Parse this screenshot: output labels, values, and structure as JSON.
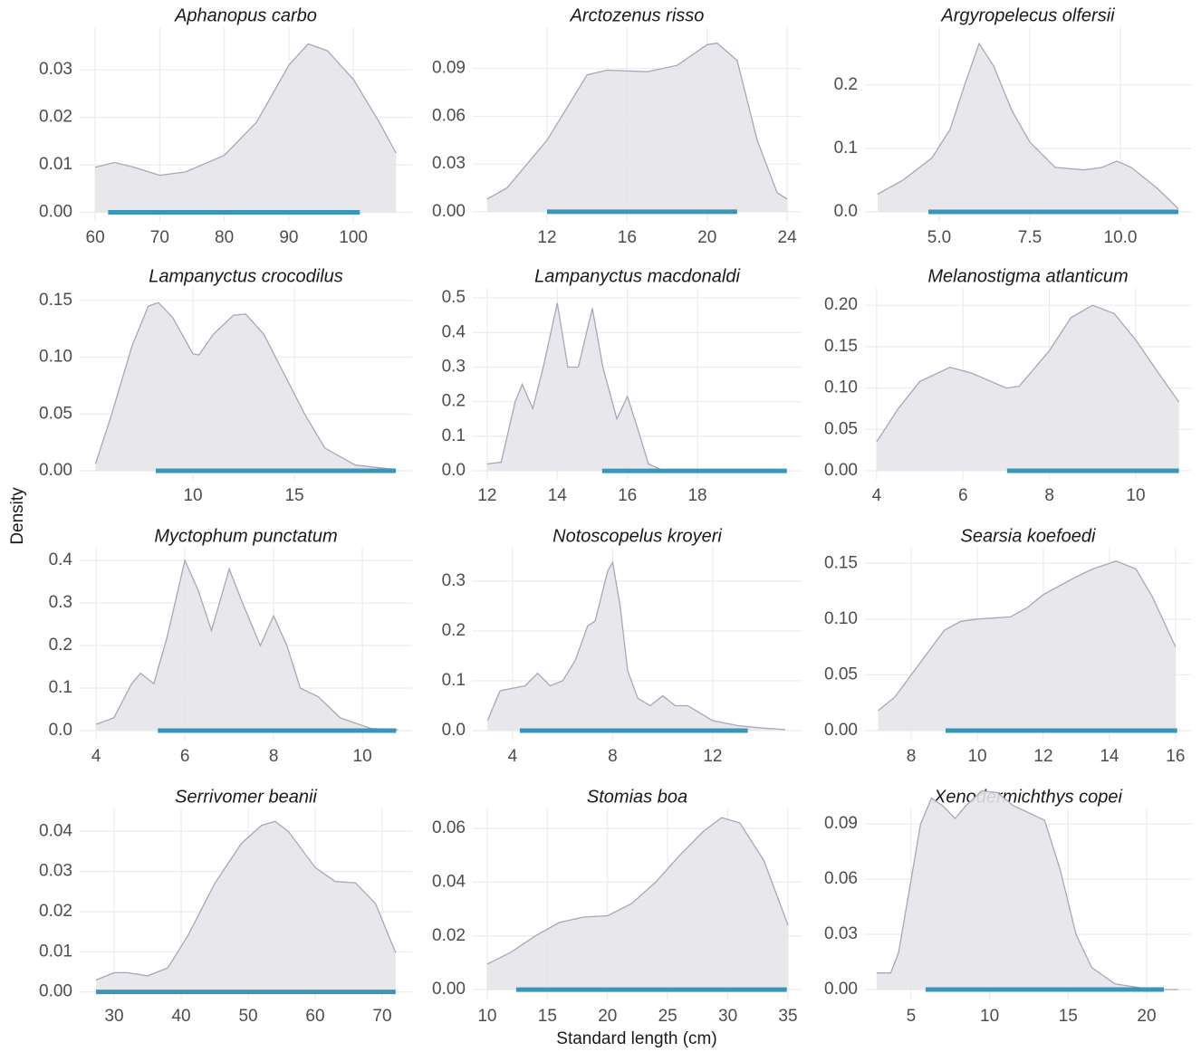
{
  "ylabel": "Density",
  "xlabel": "Standard length (cm)",
  "chart_data": [
    {
      "type": "area",
      "title": "Aphanopus carbo",
      "color": "#e6e4ea",
      "line_color": "#a9a6ba",
      "range_color": "#3a96b8",
      "grid": true,
      "x": [
        60,
        63,
        66,
        70,
        74,
        80,
        85,
        90,
        93,
        96,
        100,
        104,
        106.6
      ],
      "values": [
        0.0095,
        0.0105,
        0.0095,
        0.0078,
        0.0085,
        0.012,
        0.019,
        0.031,
        0.0355,
        0.034,
        0.028,
        0.019,
        0.0125
      ],
      "range": [
        62,
        101
      ],
      "xlim": [
        57.6,
        109.1
      ],
      "ylim": [
        -0.002,
        0.039
      ],
      "xticks": [
        60,
        70,
        80,
        90,
        100
      ],
      "yticks": [
        {
          "value": 0,
          "label": "0.00"
        },
        0.01,
        0.02,
        0.03
      ]
    },
    {
      "type": "area",
      "title": "Arctozenus risso",
      "color": "#e6e4ea",
      "line_color": "#a9a6ba",
      "range_color": "#3a96b8",
      "grid": true,
      "x": [
        9,
        10,
        12,
        14,
        15,
        17,
        18.5,
        20,
        20.5,
        21.5,
        22.5,
        23.5,
        24
      ],
      "values": [
        0.008,
        0.015,
        0.045,
        0.086,
        0.089,
        0.088,
        0.092,
        0.105,
        0.106,
        0.095,
        0.045,
        0.012,
        0.008
      ],
      "range": [
        12,
        21.5
      ],
      "xlim": [
        8.29,
        24.72
      ],
      "ylim": [
        -0.0063,
        0.116
      ],
      "xticks": [
        12,
        16,
        20,
        24
      ],
      "yticks": [
        {
          "value": 0,
          "label": "0.00"
        },
        0.03,
        0.06,
        0.09
      ]
    },
    {
      "type": "area",
      "title": "Argyropelecus olfersii",
      "color": "#e6e4ea",
      "line_color": "#a9a6ba",
      "range_color": "#3a96b8",
      "grid": true,
      "x": [
        3.3,
        4,
        4.8,
        5.3,
        5.7,
        6.1,
        6.5,
        7,
        7.5,
        8.2,
        9,
        9.5,
        9.9,
        10.3,
        11,
        11.6
      ],
      "values": [
        0.028,
        0.05,
        0.085,
        0.13,
        0.2,
        0.265,
        0.23,
        0.16,
        0.11,
        0.07,
        0.066,
        0.07,
        0.08,
        0.07,
        0.038,
        0.005
      ],
      "range": [
        4.7,
        11.6
      ],
      "xlim": [
        2.95,
        11.95
      ],
      "ylim": [
        -0.0157,
        0.291
      ],
      "xticks": [
        {
          "value": 5,
          "label": "5.0"
        },
        7.5,
        {
          "value": 10,
          "label": "10.0"
        }
      ],
      "yticks": [
        {
          "value": 0,
          "label": "0.0"
        },
        0.1,
        0.2
      ]
    },
    {
      "type": "area",
      "title": "Lampanyctus crocodilus",
      "color": "#e6e4ea",
      "line_color": "#a9a6ba",
      "range_color": "#3a96b8",
      "grid": true,
      "x": [
        5.2,
        6,
        7,
        7.8,
        8.3,
        9,
        10,
        10.3,
        11,
        12,
        12.6,
        13.5,
        14.5,
        15.5,
        16.5,
        18,
        20
      ],
      "values": [
        0.006,
        0.05,
        0.11,
        0.145,
        0.148,
        0.135,
        0.103,
        0.102,
        0.12,
        0.137,
        0.138,
        0.12,
        0.085,
        0.05,
        0.02,
        0.005,
        0.001
      ],
      "range": [
        8.17,
        20
      ],
      "xlim": [
        4.42,
        20.8
      ],
      "ylim": [
        -0.008,
        0.161
      ],
      "xticks": [
        10,
        15
      ],
      "yticks": [
        {
          "value": 0,
          "label": "0.00"
        },
        0.05,
        {
          "value": 0.1,
          "label": "0.10"
        },
        0.15
      ]
    },
    {
      "type": "area",
      "title": "Lampanyctus macdonaldi",
      "color": "#e6e4ea",
      "line_color": "#a9a6ba",
      "range_color": "#3a96b8",
      "grid": true,
      "x": [
        12,
        12.4,
        12.8,
        13,
        13.3,
        13.6,
        14,
        14.3,
        14.6,
        15,
        15.3,
        15.7,
        16,
        16.3,
        16.6,
        17,
        18
      ],
      "values": [
        0.02,
        0.025,
        0.2,
        0.25,
        0.18,
        0.3,
        0.485,
        0.3,
        0.3,
        0.47,
        0.3,
        0.15,
        0.215,
        0.12,
        0.02,
        0.002,
        0
      ],
      "range": [
        15.28,
        20.55
      ],
      "xlim": [
        11.59,
        20.97
      ],
      "ylim": [
        -0.026,
        0.529
      ],
      "xticks": [
        12,
        14,
        16,
        18
      ],
      "yticks": [
        {
          "value": 0,
          "label": "0.0"
        },
        0.1,
        0.2,
        0.3,
        0.4,
        0.5
      ]
    },
    {
      "type": "area",
      "title": "Melanostigma atlanticum",
      "color": "#e6e4ea",
      "line_color": "#a9a6ba",
      "range_color": "#3a96b8",
      "grid": true,
      "x": [
        4,
        4.5,
        5,
        5.7,
        6.2,
        7,
        7.3,
        8,
        8.5,
        9,
        9.5,
        10,
        10.5,
        11
      ],
      "values": [
        0.035,
        0.075,
        0.108,
        0.125,
        0.118,
        0.1,
        0.102,
        0.145,
        0.185,
        0.2,
        0.19,
        0.158,
        0.12,
        0.083
      ],
      "range": [
        7.02,
        11
      ],
      "xlim": [
        3.73,
        11.28
      ],
      "ylim": [
        -0.011,
        0.221
      ],
      "xticks": [
        4,
        6,
        8,
        10
      ],
      "yticks": [
        {
          "value": 0,
          "label": "0.00"
        },
        0.05,
        {
          "value": 0.1,
          "label": "0.10"
        },
        0.15,
        {
          "value": 0.2,
          "label": "0.20"
        }
      ]
    },
    {
      "type": "area",
      "title": "Myctophum punctatum",
      "color": "#e6e4ea",
      "line_color": "#a9a6ba",
      "range_color": "#3a96b8",
      "grid": true,
      "x": [
        4,
        4.4,
        4.8,
        5,
        5.3,
        5.6,
        6,
        6.3,
        6.6,
        7,
        7.3,
        7.7,
        8,
        8.3,
        8.6,
        9,
        9.5,
        10.2,
        10.8
      ],
      "values": [
        0.015,
        0.03,
        0.11,
        0.135,
        0.11,
        0.22,
        0.4,
        0.33,
        0.235,
        0.38,
        0.3,
        0.2,
        0.27,
        0.2,
        0.1,
        0.08,
        0.03,
        0.005,
        0.002
      ],
      "range": [
        5.39,
        10.76
      ],
      "xlim": [
        3.63,
        11.12
      ],
      "ylim": [
        -0.0234,
        0.43
      ],
      "xticks": [
        4,
        6,
        8,
        10
      ],
      "yticks": [
        {
          "value": 0,
          "label": "0.0"
        },
        0.1,
        0.2,
        0.3,
        0.4
      ]
    },
    {
      "type": "area",
      "title": "Notoscopelus kroyeri",
      "color": "#e6e4ea",
      "line_color": "#a9a6ba",
      "range_color": "#3a96b8",
      "grid": true,
      "x": [
        3,
        3.5,
        4,
        4.5,
        5,
        5.5,
        6,
        6.5,
        7,
        7.3,
        7.8,
        8,
        8.3,
        8.6,
        9,
        9.5,
        10,
        10.5,
        11,
        11.5,
        12,
        13,
        14,
        14.9
      ],
      "values": [
        0.02,
        0.08,
        0.085,
        0.09,
        0.115,
        0.09,
        0.1,
        0.14,
        0.21,
        0.22,
        0.32,
        0.338,
        0.25,
        0.12,
        0.065,
        0.05,
        0.07,
        0.05,
        0.05,
        0.035,
        0.02,
        0.01,
        0.005,
        0.002
      ],
      "range": [
        4.29,
        13.4
      ],
      "xlim": [
        2.41,
        15.55
      ],
      "ylim": [
        -0.02,
        0.367
      ],
      "xticks": [
        4,
        8,
        12
      ],
      "yticks": [
        {
          "value": 0,
          "label": "0.0"
        },
        0.1,
        0.2,
        0.3
      ]
    },
    {
      "type": "area",
      "title": "Searsia koefoedi",
      "color": "#e6e4ea",
      "line_color": "#a9a6ba",
      "range_color": "#3a96b8",
      "grid": true,
      "x": [
        7,
        7.5,
        8,
        8.5,
        9,
        9.5,
        10,
        11,
        11.5,
        12,
        13,
        13.5,
        14.2,
        14.8,
        15.3,
        16
      ],
      "values": [
        0.018,
        0.03,
        0.05,
        0.07,
        0.09,
        0.098,
        0.1,
        0.102,
        0.11,
        0.122,
        0.138,
        0.145,
        0.152,
        0.145,
        0.12,
        0.075
      ],
      "range": [
        9.04,
        16.05
      ],
      "xlim": [
        6.6,
        16.47
      ],
      "ylim": [
        -0.0089,
        0.164
      ],
      "xticks": [
        8,
        10,
        12,
        14,
        16
      ],
      "yticks": [
        {
          "value": 0,
          "label": "0.00"
        },
        0.05,
        {
          "value": 0.1,
          "label": "0.10"
        },
        0.15
      ]
    },
    {
      "type": "area",
      "title": "Serrivomer beanii",
      "color": "#e6e4ea",
      "line_color": "#a9a6ba",
      "range_color": "#3a96b8",
      "grid": true,
      "x": [
        27.3,
        30,
        32,
        35,
        38,
        41,
        45,
        49,
        52,
        54,
        56,
        60,
        63,
        66,
        69,
        72
      ],
      "values": [
        0.003,
        0.0048,
        0.0048,
        0.004,
        0.006,
        0.014,
        0.027,
        0.037,
        0.0415,
        0.0425,
        0.04,
        0.031,
        0.0275,
        0.0272,
        0.022,
        0.0098
      ],
      "range": [
        27.3,
        72
      ],
      "xlim": [
        24.86,
        74.46
      ],
      "ylim": [
        -0.0021,
        0.0457
      ],
      "xticks": [
        30,
        40,
        50,
        60,
        70
      ],
      "yticks": [
        {
          "value": 0,
          "label": "0.00"
        },
        0.01,
        0.02,
        0.03,
        0.04
      ]
    },
    {
      "type": "area",
      "title": "Stomias boa",
      "color": "#e6e4ea",
      "line_color": "#a9a6ba",
      "range_color": "#3a96b8",
      "grid": true,
      "x": [
        10,
        12,
        14,
        16,
        18,
        20,
        22,
        24,
        26,
        28,
        29.5,
        31,
        33,
        35
      ],
      "values": [
        0.0095,
        0.014,
        0.02,
        0.025,
        0.027,
        0.0275,
        0.032,
        0.04,
        0.05,
        0.059,
        0.064,
        0.062,
        0.048,
        0.024
      ],
      "range": [
        12.4,
        34.9
      ],
      "xlim": [
        8.8,
        36.13
      ],
      "ylim": [
        -0.004,
        0.0674
      ],
      "xticks": [
        10,
        15,
        20,
        25,
        30,
        35
      ],
      "yticks": [
        {
          "value": 0,
          "label": "0.00"
        },
        0.02,
        0.04,
        0.06
      ]
    },
    {
      "type": "area",
      "title": "Xenodermichthys copei",
      "color": "#e6e4ea",
      "line_color": "#a9a6ba",
      "range_color": "#3a96b8",
      "grid": true,
      "x": [
        2.8,
        3.7,
        4.2,
        5,
        5.6,
        6.3,
        7,
        7.8,
        8.5,
        9.5,
        10.5,
        11.5,
        12.5,
        13.5,
        14.5,
        15.5,
        16.5,
        18,
        20,
        21,
        22
      ],
      "values": [
        0.009,
        0.009,
        0.02,
        0.06,
        0.09,
        0.104,
        0.1,
        0.093,
        0.1,
        0.108,
        0.107,
        0.1,
        0.096,
        0.092,
        0.065,
        0.03,
        0.012,
        0.003,
        0.0005,
        0,
        0
      ],
      "range": [
        5.92,
        21.1
      ],
      "xlim": [
        2.06,
        22.83
      ],
      "ylim": [
        -0.0059,
        0.0984
      ],
      "xticks": [
        5,
        10,
        15,
        20
      ],
      "yticks": [
        {
          "value": 0,
          "label": "0.00"
        },
        0.03,
        0.06,
        0.09
      ]
    }
  ]
}
